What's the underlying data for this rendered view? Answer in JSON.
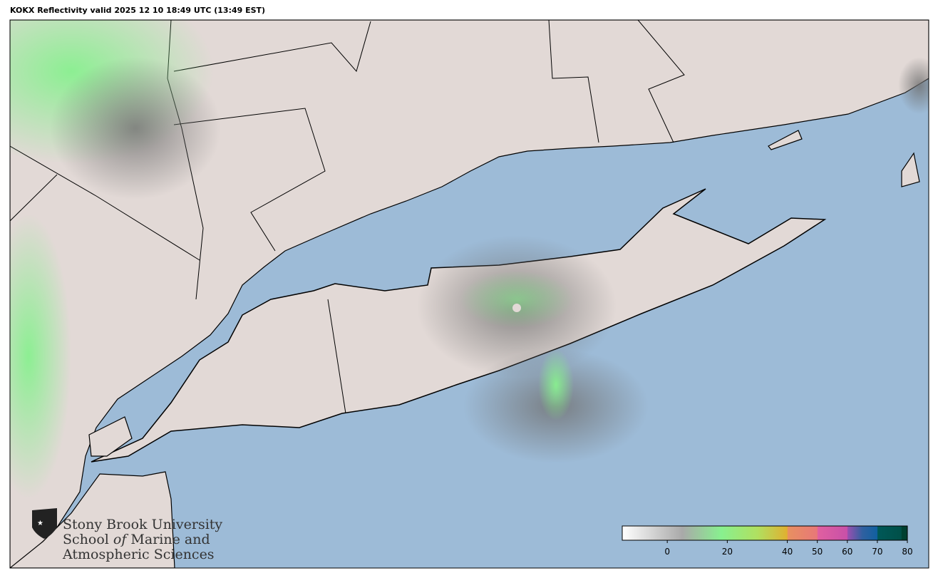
{
  "title": "KOKX Reflectivity valid 2025 12 10 18:49 UTC (13:49 EST)",
  "map": {
    "region": "Long Island / NYC / Connecticut",
    "water_color": "#9dbbd7",
    "land_color": "#e2d9d6",
    "radar_site": "KOKX"
  },
  "logo": {
    "line1": "Stony Brook University",
    "line2_a": "School ",
    "line2_b": "of",
    "line2_c": " Marine and",
    "line3": "Atmospheric Sciences"
  },
  "colorbar": {
    "min": -15,
    "max": 80,
    "ticks": [
      0,
      20,
      40,
      50,
      60,
      70,
      80
    ],
    "tick_labels": [
      "0",
      "20",
      "40",
      "50",
      "60",
      "70",
      "80"
    ],
    "stops": [
      {
        "value": -15,
        "color": "#ffffff"
      },
      {
        "value": 5,
        "color": "#a9a9a9"
      },
      {
        "value": 18,
        "color": "#88f08f"
      },
      {
        "value": 30,
        "color": "#b0e060"
      },
      {
        "value": 40,
        "color": "#e0b030"
      },
      {
        "value": 40.1,
        "color": "#e89060"
      },
      {
        "value": 50,
        "color": "#e87878"
      },
      {
        "value": 50.1,
        "color": "#e060a0"
      },
      {
        "value": 60,
        "color": "#c850a8"
      },
      {
        "value": 60.1,
        "color": "#9850b0"
      },
      {
        "value": 65,
        "color": "#3060a0"
      },
      {
        "value": 70,
        "color": "#1060a0"
      },
      {
        "value": 70.1,
        "color": "#005858"
      },
      {
        "value": 78,
        "color": "#005048"
      },
      {
        "value": 78.1,
        "color": "#004030"
      }
    ]
  }
}
